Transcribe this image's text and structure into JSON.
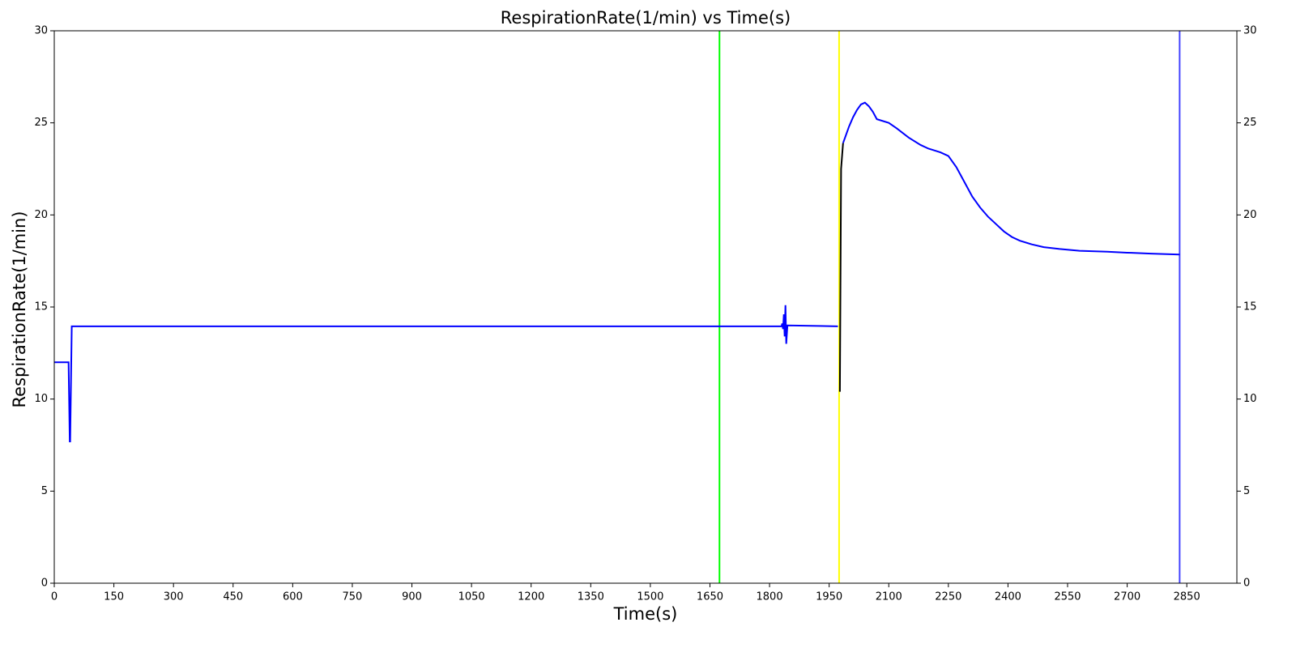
{
  "chart_data": {
    "type": "line",
    "title": "RespirationRate(1/min) vs Time(s)",
    "x_label": "Time(s)",
    "y_label": "RespirationRate(1/min)",
    "xlim": [
      0,
      2976
    ],
    "xticks": [
      0,
      150,
      300,
      450,
      600,
      750,
      900,
      1050,
      1200,
      1350,
      1500,
      1650,
      1800,
      1950,
      2100,
      2250,
      2400,
      2550,
      2700,
      2850
    ],
    "ylim": [
      0,
      30
    ],
    "yticks": [
      0,
      5,
      10,
      15,
      20,
      25,
      30
    ],
    "y2lim": [
      0,
      30
    ],
    "y2ticks": [
      0,
      5,
      10,
      15,
      20,
      25,
      30
    ],
    "series": [
      {
        "color": "#0000ff",
        "x": [
          0,
          36,
          39,
          40,
          44,
          1830,
          1832,
          1834,
          1836,
          1838,
          1840,
          1842,
          1845,
          1972,
          1973,
          1985,
          1990,
          2000,
          2010,
          2020,
          2030,
          2040,
          2050,
          2060,
          2070,
          2100,
          2120,
          2150,
          2180,
          2200,
          2230,
          2250,
          2270,
          2290,
          2310,
          2330,
          2350,
          2370,
          2390,
          2410,
          2430,
          2460,
          2490,
          2530,
          2580,
          2650,
          2700,
          2760,
          2832
        ],
        "values": [
          12,
          12,
          7.7,
          7.7,
          13.95,
          13.95,
          14.1,
          13.8,
          14.6,
          13.4,
          15.1,
          13.0,
          14.0,
          13.95,
          null,
          23.9,
          24.2,
          24.8,
          25.3,
          25.7,
          26.0,
          26.1,
          25.9,
          25.6,
          25.2,
          25.0,
          24.7,
          24.2,
          23.8,
          23.6,
          23.4,
          23.2,
          22.6,
          21.8,
          21.0,
          20.4,
          19.9,
          19.5,
          19.1,
          18.8,
          18.6,
          18.4,
          18.25,
          18.15,
          18.05,
          18.0,
          17.95,
          17.9,
          17.85
        ]
      },
      {
        "color": "#000000",
        "x": [
          1977,
          1980,
          1985
        ],
        "values": [
          10.4,
          22.5,
          23.9
        ]
      }
    ],
    "vlines": [
      {
        "x": 1674,
        "color": "#00ff00"
      },
      {
        "x": 1975,
        "color": "#ffff00"
      },
      {
        "x": 2832,
        "color": "#4444ff"
      }
    ]
  }
}
